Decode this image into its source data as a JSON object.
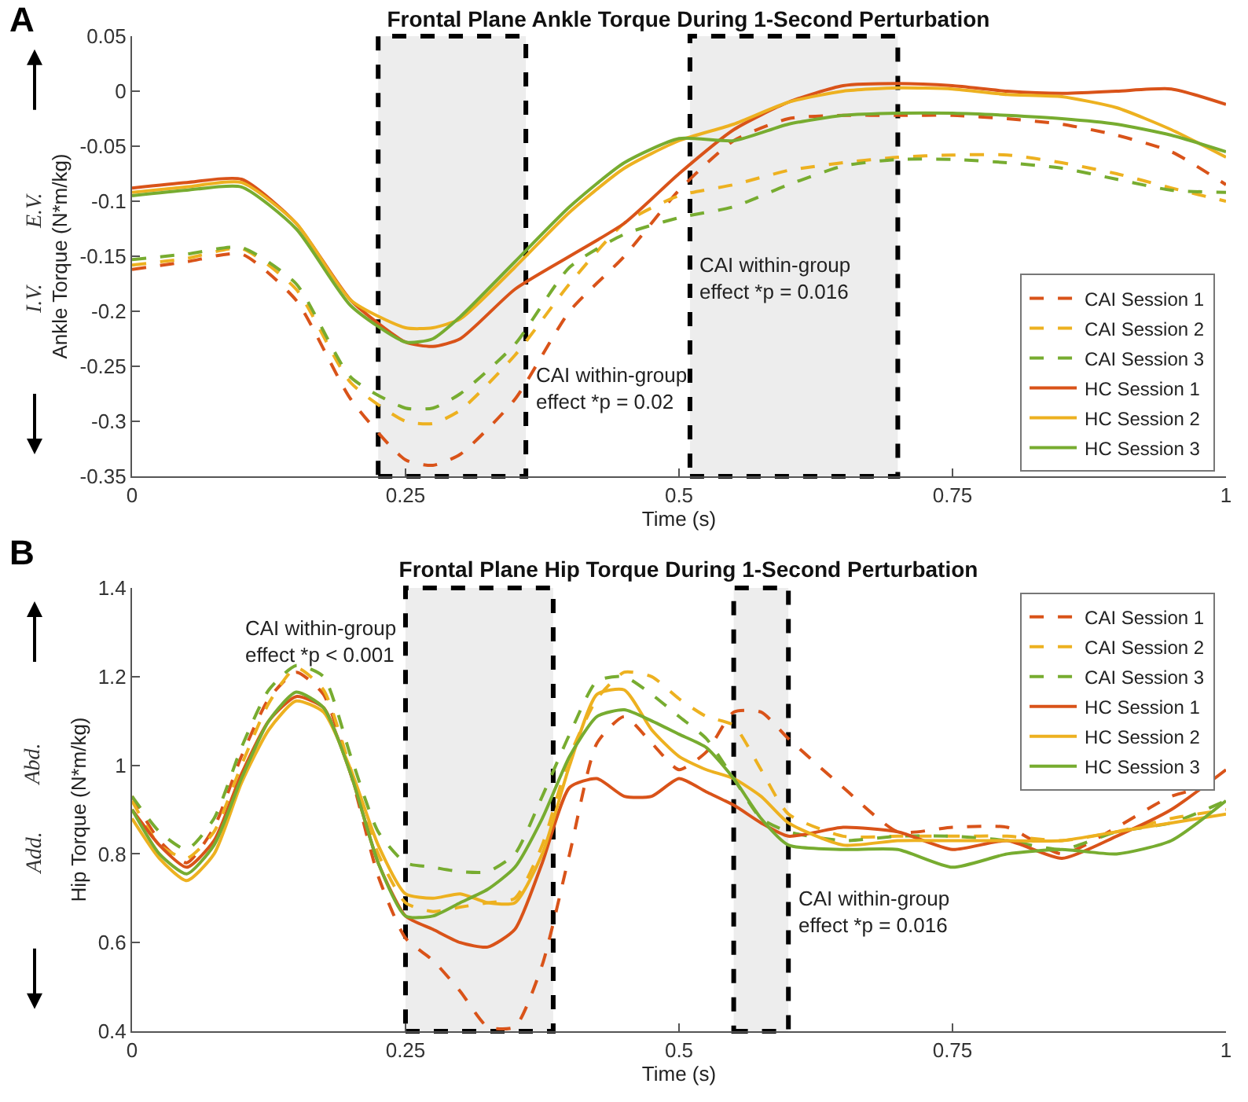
{
  "chart_data": [
    {
      "type": "line",
      "title": "Frontal Plane Ankle Torque During 1-Second Perturbation",
      "xlabel": "Time (s)",
      "ylabel": "Ankle Torque (N*m/kg)",
      "x": [
        0,
        0.05,
        0.1,
        0.15,
        0.2,
        0.25,
        0.275,
        0.3,
        0.35,
        0.4,
        0.45,
        0.5,
        0.55,
        0.6,
        0.65,
        0.7,
        0.75,
        0.8,
        0.85,
        0.9,
        0.95,
        1
      ],
      "series": [
        {
          "name": "CAI Session 1",
          "color": "#d95319",
          "line_style": "dashed",
          "values": [
            -0.162,
            -0.155,
            -0.148,
            -0.19,
            -0.28,
            -0.335,
            -0.34,
            -0.33,
            -0.28,
            -0.2,
            -0.15,
            -0.09,
            -0.045,
            -0.025,
            -0.022,
            -0.022,
            -0.022,
            -0.025,
            -0.03,
            -0.04,
            -0.055,
            -0.085
          ]
        },
        {
          "name": "CAI Session 2",
          "color": "#edb120",
          "line_style": "dashed",
          "values": [
            -0.158,
            -0.152,
            -0.143,
            -0.18,
            -0.265,
            -0.3,
            -0.302,
            -0.29,
            -0.24,
            -0.175,
            -0.12,
            -0.095,
            -0.085,
            -0.072,
            -0.065,
            -0.06,
            -0.058,
            -0.058,
            -0.065,
            -0.075,
            -0.088,
            -0.1
          ]
        },
        {
          "name": "CAI Session 3",
          "color": "#77ac30",
          "line_style": "dashed",
          "values": [
            -0.153,
            -0.148,
            -0.142,
            -0.175,
            -0.26,
            -0.288,
            -0.288,
            -0.275,
            -0.23,
            -0.16,
            -0.13,
            -0.115,
            -0.105,
            -0.085,
            -0.068,
            -0.062,
            -0.062,
            -0.065,
            -0.07,
            -0.08,
            -0.09,
            -0.092
          ]
        },
        {
          "name": "HC Session 1",
          "color": "#d95319",
          "line_style": "solid",
          "values": [
            -0.088,
            -0.083,
            -0.08,
            -0.12,
            -0.19,
            -0.228,
            -0.232,
            -0.225,
            -0.18,
            -0.15,
            -0.12,
            -0.075,
            -0.035,
            -0.01,
            0.005,
            0.007,
            0.005,
            0,
            -0.002,
            0,
            0.002,
            -0.012
          ]
        },
        {
          "name": "HC Session 2",
          "color": "#edb120",
          "line_style": "solid",
          "values": [
            -0.092,
            -0.087,
            -0.083,
            -0.12,
            -0.19,
            -0.215,
            -0.215,
            -0.207,
            -0.16,
            -0.11,
            -0.07,
            -0.045,
            -0.03,
            -0.01,
            0,
            0.003,
            0.002,
            -0.003,
            -0.005,
            -0.015,
            -0.035,
            -0.06
          ]
        },
        {
          "name": "HC Session 3",
          "color": "#77ac30",
          "line_style": "solid",
          "values": [
            -0.095,
            -0.09,
            -0.087,
            -0.125,
            -0.195,
            -0.228,
            -0.225,
            -0.205,
            -0.155,
            -0.105,
            -0.065,
            -0.043,
            -0.045,
            -0.03,
            -0.022,
            -0.02,
            -0.02,
            -0.022,
            -0.025,
            -0.03,
            -0.04,
            -0.055
          ]
        }
      ],
      "xlim": [
        0,
        1
      ],
      "xticks": [
        0,
        0.25,
        0.5,
        0.75,
        1
      ],
      "ylim": [
        -0.35,
        0.05
      ],
      "yticks": [
        -0.35,
        -0.3,
        -0.25,
        -0.2,
        -0.15,
        -0.1,
        -0.05,
        0,
        0.05
      ],
      "bands": [
        {
          "axis": "x",
          "from": 0.225,
          "to": 0.36,
          "color": "#000000",
          "label": "CAI within-group effect *p = 0.02"
        },
        {
          "axis": "x",
          "from": 0.51,
          "to": 0.7,
          "color": "#000000",
          "label": "CAI within-group effect *p = 0.016"
        }
      ],
      "annotations": [
        "A",
        "E.V.",
        "I.V."
      ],
      "legend": "bottom right"
    },
    {
      "type": "line",
      "title": "Frontal Plane Hip Torque During 1-Second Perturbation",
      "xlabel": "Time (s)",
      "ylabel": "Hip Torque (N*m/kg)",
      "x": [
        0,
        0.025,
        0.05,
        0.075,
        0.1,
        0.125,
        0.15,
        0.175,
        0.2,
        0.225,
        0.25,
        0.275,
        0.3,
        0.325,
        0.35,
        0.375,
        0.4,
        0.425,
        0.45,
        0.475,
        0.5,
        0.525,
        0.55,
        0.575,
        0.6,
        0.65,
        0.7,
        0.75,
        0.8,
        0.85,
        0.9,
        0.95,
        1
      ],
      "series": [
        {
          "name": "CAI Session 1",
          "color": "#d95319",
          "line_style": "dashed",
          "values": [
            0.93,
            0.83,
            0.78,
            0.86,
            1.02,
            1.15,
            1.21,
            1.16,
            0.98,
            0.75,
            0.61,
            0.56,
            0.49,
            0.41,
            0.41,
            0.55,
            0.8,
            1.05,
            1.11,
            1.05,
            0.99,
            1.03,
            1.12,
            1.12,
            1.06,
            0.95,
            0.85,
            0.86,
            0.86,
            0.8,
            0.86,
            0.93,
            0.96
          ]
        },
        {
          "name": "CAI Session 2",
          "color": "#edb120",
          "line_style": "dashed",
          "values": [
            0.92,
            0.82,
            0.79,
            0.85,
            1.0,
            1.14,
            1.22,
            1.17,
            0.99,
            0.8,
            0.69,
            0.67,
            0.68,
            0.69,
            0.7,
            0.82,
            1.02,
            1.15,
            1.21,
            1.2,
            1.15,
            1.11,
            1.09,
            0.99,
            0.89,
            0.84,
            0.84,
            0.84,
            0.84,
            0.83,
            0.85,
            0.88,
            0.9
          ]
        },
        {
          "name": "CAI Session 3",
          "color": "#77ac30",
          "line_style": "dashed",
          "values": [
            0.93,
            0.85,
            0.81,
            0.88,
            1.04,
            1.17,
            1.225,
            1.2,
            1.02,
            0.85,
            0.78,
            0.77,
            0.76,
            0.76,
            0.8,
            0.93,
            1.07,
            1.19,
            1.2,
            1.16,
            1.11,
            1.06,
            0.97,
            0.88,
            0.85,
            0.83,
            0.84,
            0.84,
            0.83,
            0.81,
            0.85,
            0.87,
            0.92
          ]
        },
        {
          "name": "HC Session 1",
          "color": "#d95319",
          "line_style": "solid",
          "values": [
            0.9,
            0.82,
            0.77,
            0.83,
            0.98,
            1.1,
            1.155,
            1.13,
            0.98,
            0.78,
            0.66,
            0.63,
            0.6,
            0.59,
            0.63,
            0.78,
            0.95,
            0.97,
            0.93,
            0.93,
            0.97,
            0.94,
            0.91,
            0.87,
            0.84,
            0.86,
            0.85,
            0.81,
            0.83,
            0.79,
            0.84,
            0.9,
            0.99
          ]
        },
        {
          "name": "HC Session 2",
          "color": "#edb120",
          "line_style": "solid",
          "values": [
            0.88,
            0.79,
            0.74,
            0.8,
            0.96,
            1.08,
            1.145,
            1.12,
            0.99,
            0.82,
            0.71,
            0.7,
            0.71,
            0.69,
            0.69,
            0.8,
            1.0,
            1.16,
            1.17,
            1.08,
            1.02,
            0.99,
            0.97,
            0.93,
            0.87,
            0.82,
            0.83,
            0.83,
            0.83,
            0.83,
            0.85,
            0.87,
            0.89
          ]
        },
        {
          "name": "HC Session 3",
          "color": "#77ac30",
          "line_style": "solid",
          "values": [
            0.9,
            0.8,
            0.755,
            0.82,
            0.97,
            1.1,
            1.165,
            1.13,
            0.98,
            0.78,
            0.66,
            0.66,
            0.69,
            0.72,
            0.77,
            0.88,
            1.02,
            1.11,
            1.125,
            1.1,
            1.07,
            1.04,
            0.97,
            0.88,
            0.82,
            0.81,
            0.81,
            0.77,
            0.8,
            0.81,
            0.8,
            0.83,
            0.92
          ]
        }
      ],
      "xlim": [
        0,
        1
      ],
      "xticks": [
        0,
        0.25,
        0.5,
        0.75,
        1
      ],
      "ylim": [
        0.4,
        1.4
      ],
      "yticks": [
        0.4,
        0.6,
        0.8,
        1,
        1.2,
        1.4
      ],
      "bands": [
        {
          "axis": "x",
          "from": 0.25,
          "to": 0.385,
          "color": "#000000",
          "label": "CAI within-group effect *p < 0.001"
        },
        {
          "axis": "x",
          "from": 0.55,
          "to": 0.6,
          "color": "#000000",
          "label": "CAI within-group effect *p = 0.016"
        }
      ],
      "annotations": [
        "B",
        "Abd.",
        "Add."
      ],
      "legend": "top right"
    }
  ]
}
